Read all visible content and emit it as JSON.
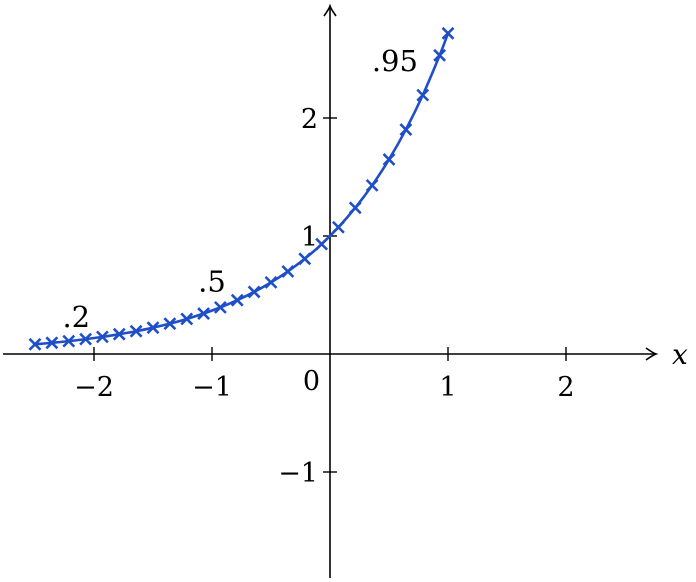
{
  "chart_data": {
    "type": "line",
    "title": "",
    "xlabel": "x",
    "ylabel": "",
    "xlim": [
      -2.8,
      2.75
    ],
    "ylim": [
      -1.9,
      2.95
    ],
    "grid": false,
    "x_ticks": [
      {
        "value": -2,
        "label": "−2"
      },
      {
        "value": -1,
        "label": "−1"
      },
      {
        "value": 1,
        "label": "1"
      },
      {
        "value": 2,
        "label": "2"
      }
    ],
    "y_ticks": [
      {
        "value": -1,
        "label": "−1"
      },
      {
        "value": 1,
        "label": "1"
      },
      {
        "value": 2,
        "label": "2"
      }
    ],
    "origin_label": "0",
    "series": [
      {
        "color": "#1f4fc7",
        "marker": "x",
        "x": [
          -2.5,
          -2.357,
          -2.214,
          -2.071,
          -1.929,
          -1.786,
          -1.643,
          -1.5,
          -1.357,
          -1.214,
          -1.071,
          -0.929,
          -0.786,
          -0.643,
          -0.5,
          -0.357,
          -0.214,
          -0.071,
          0.071,
          0.214,
          0.357,
          0.5,
          0.643,
          0.786,
          0.929,
          1.0
        ],
        "y": [
          0.082,
          0.095,
          0.109,
          0.126,
          0.145,
          0.168,
          0.193,
          0.223,
          0.257,
          0.297,
          0.343,
          0.395,
          0.456,
          0.526,
          0.607,
          0.7,
          0.807,
          0.931,
          1.074,
          1.239,
          1.429,
          1.649,
          1.902,
          2.194,
          2.531,
          2.718
        ]
      }
    ],
    "annotations": [
      {
        "text": ".2",
        "x": -2.15,
        "y": 0.23
      },
      {
        "text": ".5",
        "x": -1.0,
        "y": 0.53
      },
      {
        "text": ".95",
        "x": 0.55,
        "y": 2.4
      }
    ]
  }
}
